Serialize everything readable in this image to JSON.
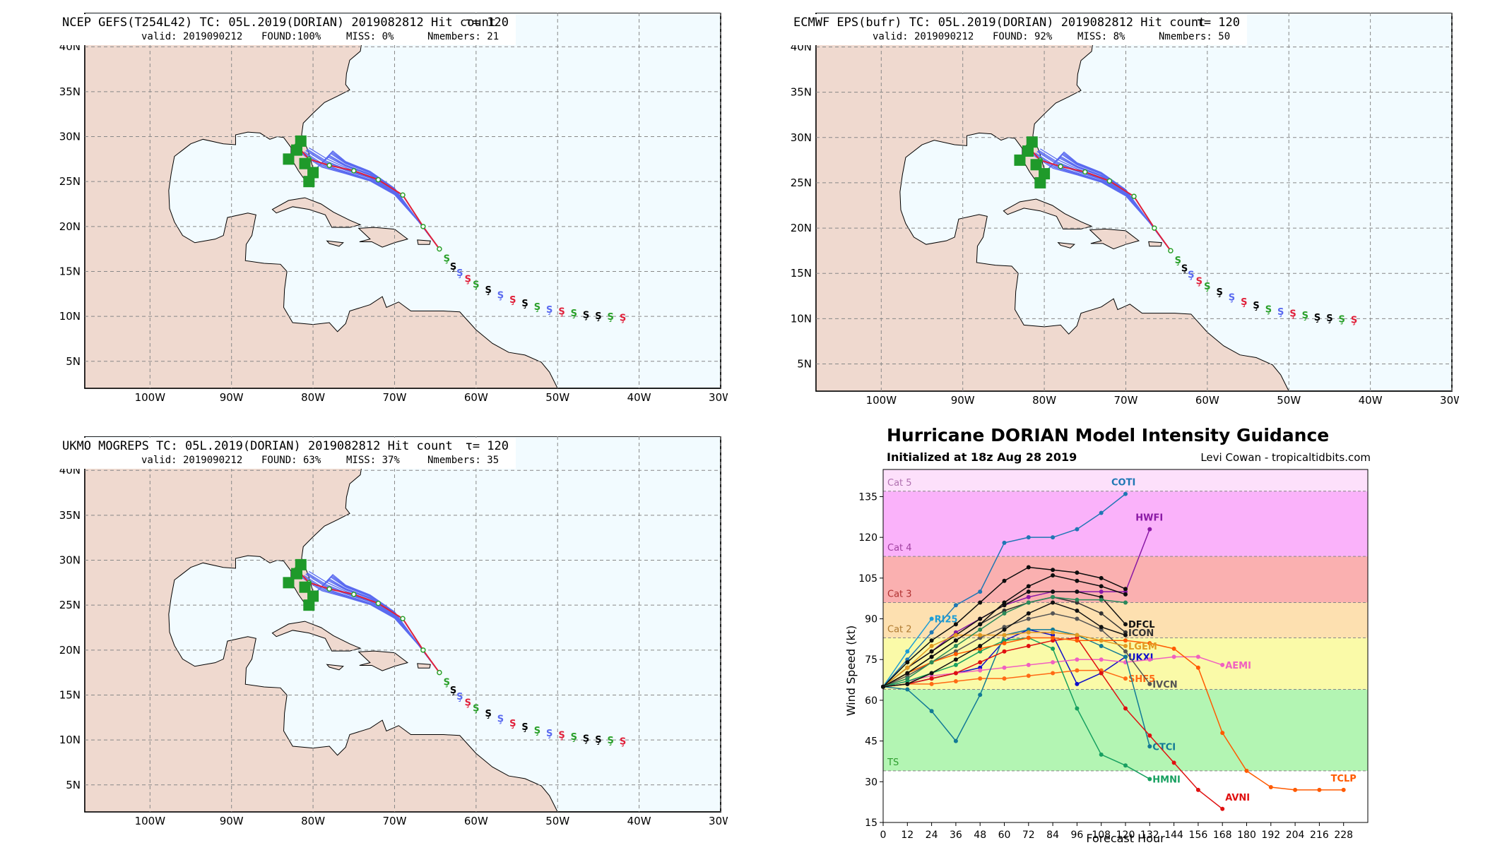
{
  "map_panels": [
    {
      "title": "NCEP GEFS(T254L42) TC: 05L.2019(DORIAN) 2019082812 Hit count",
      "tau": "τ= 120",
      "valid": "valid: 2019090212",
      "found": "FOUND:100%",
      "miss": "MISS:  0%",
      "nmembers": "Nmembers: 21",
      "lon_labels": [
        "100W",
        "90W",
        "80W",
        "70W",
        "60W",
        "50W",
        "40W",
        "30W"
      ],
      "lat_labels": [
        "40N",
        "35N",
        "30N",
        "25N",
        "20N",
        "15N",
        "10N",
        "5N"
      ]
    },
    {
      "title": "ECMWF EPS(bufr) TC: 05L.2019(DORIAN) 2019082812 Hit count",
      "tau": "τ= 120",
      "valid": "valid: 2019090212",
      "found": "FOUND: 92%",
      "miss": "MISS:  8%",
      "nmembers": "Nmembers: 50",
      "lon_labels": [
        "100W",
        "90W",
        "80W",
        "70W",
        "60W",
        "50W",
        "40W",
        "30W"
      ],
      "lat_labels": [
        "40N",
        "35N",
        "30N",
        "25N",
        "20N",
        "15N",
        "10N",
        "5N"
      ]
    },
    {
      "title": "UKMO MOGREPS TC: 05L.2019(DORIAN) 2019082812 Hit count",
      "tau": "τ= 120",
      "valid": "valid: 2019090212",
      "found": "FOUND: 63%",
      "miss": "MISS: 37%",
      "nmembers": "Nmembers: 35",
      "lon_labels": [
        "100W",
        "90W",
        "80W",
        "70W",
        "60W",
        "50W",
        "40W",
        "30W"
      ],
      "lat_labels": [
        "40N",
        "35N",
        "30N",
        "25N",
        "20N",
        "15N",
        "10N",
        "5N"
      ]
    }
  ],
  "chart_data": {
    "type": "line",
    "title": "Hurricane DORIAN Model Intensity Guidance",
    "subtitle": "Initialized at 18z Aug 28 2019",
    "credit": "Levi Cowan - tropicaltidbits.com",
    "xlabel": "Forecast Hour",
    "ylabel": "Wind Speed (kt)",
    "xlim": [
      0,
      240
    ],
    "ylim": [
      15,
      145
    ],
    "x_ticks": [
      0,
      12,
      24,
      36,
      48,
      60,
      72,
      84,
      96,
      108,
      120,
      132,
      144,
      156,
      168,
      180,
      192,
      204,
      216,
      228
    ],
    "y_ticks": [
      15,
      30,
      45,
      60,
      75,
      90,
      105,
      120,
      135
    ],
    "categories": [
      {
        "label": "TS",
        "from": 34,
        "to": 64,
        "color": "#b3f5b3",
        "label_color": "#2e9e2e"
      },
      {
        "label": "",
        "from": 64,
        "to": 83,
        "color": "#fafaa8",
        "label_color": "#9a9a30"
      },
      {
        "label": "Cat 2",
        "from": 83,
        "to": 96,
        "color": "#fde0b0",
        "label_color": "#b07a30"
      },
      {
        "label": "Cat 3",
        "from": 96,
        "to": 113,
        "color": "#fab0b0",
        "label_color": "#b03030"
      },
      {
        "label": "Cat 4",
        "from": 113,
        "to": 137,
        "color": "#fab2fa",
        "label_color": "#a040a0"
      },
      {
        "label": "Cat 5",
        "from": 137,
        "to": 145,
        "color": "#fde0fb",
        "label_color": "#b070b0"
      }
    ],
    "series": [
      {
        "name": "COTI",
        "color": "#1f77b4",
        "x": [
          0,
          12,
          24,
          36,
          48,
          60,
          72,
          84,
          96,
          108,
          120
        ],
        "y": [
          65,
          75,
          85,
          95,
          100,
          118,
          120,
          120,
          123,
          129,
          136
        ]
      },
      {
        "name": "HWFI",
        "color": "#8b1aa6",
        "x": [
          0,
          12,
          24,
          36,
          48,
          60,
          72,
          84,
          96,
          108,
          120,
          132
        ],
        "y": [
          65,
          72,
          78,
          85,
          90,
          95,
          98,
          100,
          100,
          100,
          100,
          123
        ]
      },
      {
        "name": "RI25",
        "color": "#1b9dd6",
        "x": [
          0,
          12,
          24
        ],
        "y": [
          65,
          78,
          90
        ]
      },
      {
        "name": "DFCL",
        "color": "#111111",
        "x": [
          0,
          12,
          24,
          36,
          48,
          60,
          72,
          84,
          96,
          108,
          120
        ],
        "y": [
          65,
          72,
          78,
          84,
          90,
          95,
          100,
          100,
          100,
          98,
          88
        ]
      },
      {
        "name": "ICON",
        "color": "#333333",
        "x": [
          0,
          12,
          24,
          36,
          48,
          60,
          72,
          84,
          96,
          108,
          120
        ],
        "y": [
          65,
          70,
          76,
          82,
          88,
          93,
          96,
          98,
          96,
          92,
          85
        ]
      },
      {
        "name": "UKXI",
        "color": "#1010c8",
        "x": [
          0,
          12,
          24,
          36,
          48,
          60,
          72,
          84,
          96,
          108,
          120
        ],
        "y": [
          65,
          66,
          68,
          70,
          72,
          82,
          86,
          84,
          66,
          70,
          76
        ]
      },
      {
        "name": "AEMI",
        "color": "#f060c0",
        "x": [
          0,
          12,
          24,
          36,
          48,
          60,
          72,
          84,
          96,
          108,
          120,
          132,
          144,
          156,
          168
        ],
        "y": [
          65,
          67,
          69,
          70,
          71,
          72,
          73,
          74,
          75,
          75,
          74,
          75,
          76,
          76,
          73
        ]
      },
      {
        "name": "SHF5",
        "color": "#ff6a14",
        "x": [
          0,
          12,
          24,
          36,
          48,
          60,
          72,
          84,
          96,
          108,
          120
        ],
        "y": [
          65,
          66,
          66,
          67,
          68,
          68,
          69,
          70,
          71,
          71,
          68
        ]
      },
      {
        "name": "IVCN",
        "color": "#555555",
        "x": [
          0,
          12,
          24,
          36,
          48,
          60,
          72,
          84,
          96,
          108,
          120,
          132
        ],
        "y": [
          65,
          69,
          74,
          78,
          83,
          87,
          90,
          92,
          90,
          86,
          78,
          66
        ]
      },
      {
        "name": "CTCI",
        "color": "#127a96",
        "x": [
          0,
          12,
          24,
          36,
          48,
          60,
          72,
          84,
          96,
          108,
          120,
          132
        ],
        "y": [
          65,
          64,
          56,
          45,
          62,
          84,
          86,
          86,
          84,
          80,
          76,
          43
        ]
      },
      {
        "name": "HMNI",
        "color": "#17a060",
        "x": [
          0,
          12,
          24,
          36,
          48,
          60,
          72,
          84,
          96,
          108,
          120,
          132
        ],
        "y": [
          65,
          67,
          70,
          73,
          78,
          82,
          83,
          79,
          57,
          40,
          36,
          31
        ]
      },
      {
        "name": "AVNI",
        "color": "#e01010",
        "x": [
          0,
          12,
          24,
          36,
          48,
          60,
          72,
          84,
          96,
          108,
          120,
          132,
          144,
          156,
          168
        ],
        "y": [
          65,
          66,
          68,
          70,
          74,
          78,
          80,
          82,
          83,
          70,
          57,
          47,
          37,
          27,
          20
        ]
      },
      {
        "name": "TCLP",
        "color": "#ff5a00",
        "x": [
          0,
          12,
          24,
          36,
          48,
          60,
          72,
          84,
          96,
          108,
          120,
          132,
          144,
          156,
          168,
          180,
          192,
          204,
          216,
          228
        ],
        "y": [
          65,
          70,
          74,
          77,
          79,
          81,
          83,
          83,
          82,
          82,
          82,
          81,
          79,
          72,
          48,
          34,
          28,
          27,
          27,
          27
        ]
      },
      {
        "name": "LGEM",
        "color": "#e39a20",
        "x": [
          0,
          12,
          24,
          36,
          48,
          60,
          72,
          84,
          96,
          108,
          120
        ],
        "y": [
          65,
          72,
          80,
          84,
          84,
          84,
          85,
          85,
          84,
          82,
          80
        ]
      },
      {
        "name": "",
        "color": "#0d0d0d",
        "x": [
          0,
          12,
          24,
          36,
          48,
          60,
          72,
          84,
          96,
          108,
          120
        ],
        "y": [
          65,
          74,
          82,
          88,
          96,
          104,
          109,
          108,
          107,
          105,
          101
        ]
      },
      {
        "name": "",
        "color": "#0d0d0d",
        "x": [
          0,
          12,
          24,
          36,
          48,
          60,
          72,
          84,
          96,
          108,
          120
        ],
        "y": [
          65,
          70,
          76,
          82,
          88,
          96,
          102,
          106,
          104,
          102,
          99
        ]
      },
      {
        "name": "",
        "color": "#2a8a5a",
        "x": [
          0,
          12,
          24,
          36,
          48,
          60,
          72,
          84,
          96,
          108,
          120
        ],
        "y": [
          65,
          68,
          74,
          80,
          86,
          92,
          96,
          98,
          97,
          97,
          96
        ]
      },
      {
        "name": "",
        "color": "#111111",
        "x": [
          0,
          12,
          24,
          36,
          48,
          60,
          72,
          84,
          96,
          108,
          120
        ],
        "y": [
          65,
          66,
          70,
          75,
          80,
          86,
          92,
          96,
          93,
          87,
          84
        ]
      }
    ],
    "label_positions_hint": "end-of-series"
  },
  "legend_labels": [
    "COTI",
    "HWFI",
    "RI25",
    "DFCL",
    "ICON",
    "UKXI",
    "AEMI",
    "SHF5",
    "IVCN",
    "CTCI",
    "HMNI",
    "AVNI",
    "TCLP",
    "LGEM"
  ]
}
